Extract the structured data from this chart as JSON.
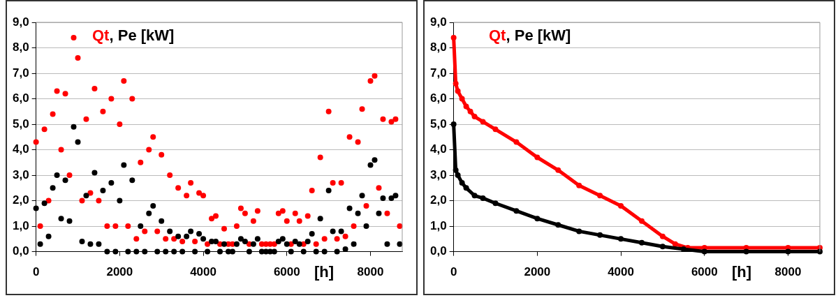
{
  "chart_data": [
    {
      "type": "scatter",
      "xlabel": "[h]",
      "ylabel": "[kW]",
      "annotations": [
        ","
      ],
      "marker": "circle",
      "grid": "y",
      "xlim": [
        0,
        8760
      ],
      "xticks": [
        0,
        2000,
        4000,
        6000,
        8000
      ],
      "ylim": [
        0,
        9
      ],
      "yticks": [
        {
          "value": 0,
          "label": "0,0"
        },
        {
          "value": 1,
          "label": "1,0"
        },
        {
          "value": 2,
          "label": "2,0"
        },
        {
          "value": 3,
          "label": "3,0"
        },
        {
          "value": 4,
          "label": "4,0"
        },
        {
          "value": 5,
          "label": "5,0"
        },
        {
          "value": 6,
          "label": "6,0"
        },
        {
          "value": 7,
          "label": "7,0"
        },
        {
          "value": 8,
          "label": "8,0"
        },
        {
          "value": 9,
          "label": "9,0"
        }
      ],
      "x": [
        0,
        100,
        200,
        300,
        400,
        500,
        600,
        700,
        800,
        900,
        1000,
        1100,
        1200,
        1300,
        1400,
        1500,
        1600,
        1700,
        1800,
        1900,
        2000,
        2100,
        2200,
        2300,
        2400,
        2500,
        2600,
        2700,
        2800,
        2900,
        3000,
        3100,
        3200,
        3300,
        3400,
        3500,
        3600,
        3700,
        3800,
        3900,
        4000,
        4100,
        4200,
        4300,
        4400,
        4500,
        4600,
        4700,
        4800,
        4900,
        5000,
        5100,
        5200,
        5300,
        5400,
        5500,
        5600,
        5700,
        5800,
        5900,
        6000,
        6100,
        6200,
        6300,
        6400,
        6500,
        6600,
        6700,
        6800,
        6900,
        7000,
        7100,
        7200,
        7300,
        7400,
        7500,
        7600,
        7700,
        7800,
        7900,
        8000,
        8100,
        8200,
        8300,
        8400,
        8500,
        8600,
        8700
      ],
      "series": [
        {
          "name": "Qt",
          "color": "#ff0000",
          "values": [
            4.3,
            1.0,
            4.8,
            2.0,
            5.4,
            6.3,
            4.0,
            6.2,
            3.0,
            8.4,
            7.6,
            2.0,
            5.2,
            2.3,
            6.4,
            2.0,
            5.5,
            1.0,
            6.0,
            1.0,
            5.0,
            6.7,
            1.0,
            6.0,
            0.5,
            3.5,
            0.8,
            4.0,
            4.5,
            0.8,
            3.8,
            0.5,
            3.0,
            0.5,
            2.5,
            0.4,
            2.2,
            2.7,
            0.4,
            2.3,
            2.2,
            0.3,
            1.3,
            1.4,
            0.3,
            0.9,
            0.3,
            0.3,
            1.0,
            1.7,
            1.5,
            0.3,
            1.2,
            1.6,
            0.3,
            0.3,
            0.3,
            0.3,
            1.5,
            1.6,
            1.2,
            0.3,
            1.5,
            1.2,
            0.3,
            1.4,
            2.4,
            0.3,
            3.7,
            0.5,
            5.5,
            2.7,
            0.5,
            2.7,
            0.6,
            4.5,
            1.0,
            4.3,
            5.6,
            1.8,
            6.7,
            6.9,
            2.5,
            5.2,
            1.5,
            5.1,
            5.2,
            1.0
          ]
        },
        {
          "name": "Pe",
          "color": "#000000",
          "values": [
            1.7,
            0.3,
            1.9,
            0.6,
            2.5,
            3.0,
            1.3,
            2.8,
            1.2,
            4.9,
            4.3,
            0.4,
            2.2,
            0.3,
            3.1,
            0.3,
            2.4,
            0.0,
            2.7,
            0.0,
            2.0,
            3.4,
            0.0,
            2.8,
            0.0,
            1.0,
            0.0,
            1.5,
            1.8,
            0.0,
            1.2,
            0.0,
            0.8,
            0.0,
            0.6,
            0.0,
            0.6,
            0.8,
            0.0,
            0.7,
            0.5,
            0.0,
            0.4,
            0.4,
            0.0,
            0.3,
            0.0,
            0.0,
            0.3,
            0.5,
            0.4,
            0.0,
            0.3,
            0.5,
            0.0,
            0.0,
            0.0,
            0.0,
            0.4,
            0.5,
            0.3,
            0.0,
            0.4,
            0.3,
            0.0,
            0.4,
            0.7,
            0.0,
            1.3,
            0.0,
            2.4,
            0.8,
            0.0,
            0.8,
            0.1,
            1.7,
            0.3,
            1.5,
            2.2,
            1.0,
            3.4,
            3.6,
            1.5,
            2.1,
            0.3,
            2.1,
            2.2,
            0.3
          ]
        }
      ]
    },
    {
      "type": "line",
      "xlabel": "[h]",
      "ylabel": "[kW]",
      "annotations": [
        ","
      ],
      "marker": "circle",
      "grid": "y",
      "xlim": [
        0,
        8760
      ],
      "xticks": [
        0,
        2000,
        4000,
        6000,
        8000
      ],
      "ylim": [
        0,
        9
      ],
      "yticks": [
        {
          "value": 0,
          "label": "0,0"
        },
        {
          "value": 1,
          "label": "1,0"
        },
        {
          "value": 2,
          "label": "2,0"
        },
        {
          "value": 3,
          "label": "3,0"
        },
        {
          "value": 4,
          "label": "4,0"
        },
        {
          "value": 5,
          "label": "5,0"
        },
        {
          "value": 6,
          "label": "6,0"
        },
        {
          "value": 7,
          "label": "7,0"
        },
        {
          "value": 8,
          "label": "8,0"
        },
        {
          "value": 9,
          "label": "9,0"
        }
      ],
      "series": [
        {
          "name": "Qt",
          "color": "#ff0000",
          "x": [
            0,
            50,
            100,
            200,
            300,
            400,
            500,
            700,
            1000,
            1500,
            2000,
            2500,
            3000,
            3500,
            4000,
            4500,
            5000,
            5300,
            5600,
            6000,
            7000,
            8000,
            8760
          ],
          "values": [
            8.4,
            6.6,
            6.3,
            6.0,
            5.7,
            5.5,
            5.3,
            5.1,
            4.8,
            4.3,
            3.7,
            3.2,
            2.6,
            2.2,
            1.8,
            1.2,
            0.6,
            0.3,
            0.15,
            0.15,
            0.15,
            0.15,
            0.15
          ]
        },
        {
          "name": "Pe",
          "color": "#000000",
          "x": [
            0,
            50,
            100,
            200,
            300,
            500,
            700,
            1000,
            1500,
            2000,
            2500,
            3000,
            3500,
            4000,
            4500,
            5000,
            5500,
            6000,
            7000,
            8000,
            8760
          ],
          "values": [
            5.0,
            3.2,
            3.0,
            2.7,
            2.5,
            2.2,
            2.1,
            1.9,
            1.6,
            1.3,
            1.05,
            0.8,
            0.65,
            0.5,
            0.35,
            0.2,
            0.1,
            0.0,
            0.0,
            0.0,
            0.0
          ]
        }
      ]
    }
  ]
}
